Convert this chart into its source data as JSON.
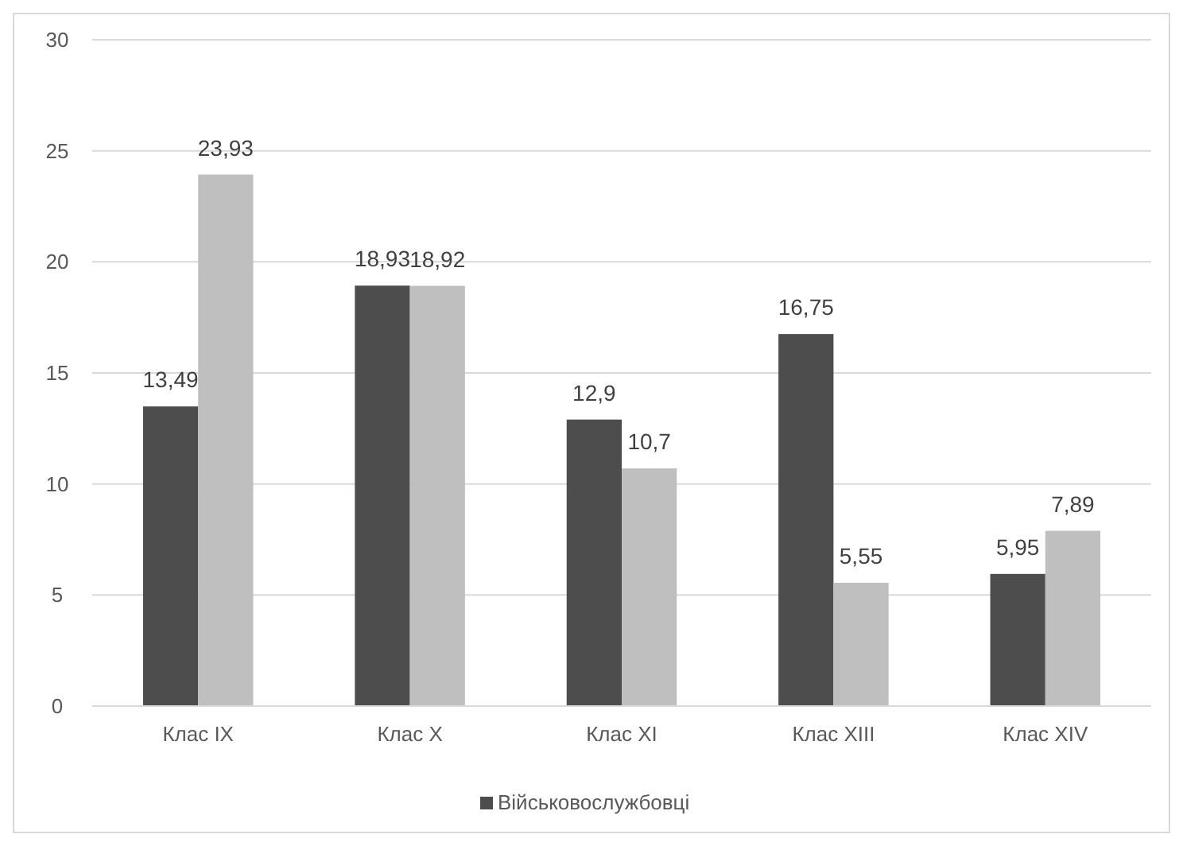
{
  "chart_data": {
    "type": "bar",
    "categories": [
      "Клас IX",
      "Клас X",
      "Клас XI",
      "Клас XIII",
      "Клас XIV"
    ],
    "series": [
      {
        "name": "Військовослужбовці",
        "color": "#4d4d4d",
        "values": [
          13.49,
          18.93,
          12.9,
          16.75,
          5.95
        ],
        "value_labels": [
          "13,49",
          "18,93",
          "12,9",
          "16,75",
          "5,95"
        ]
      },
      {
        "color": "#bfbfbf",
        "values": [
          23.93,
          18.92,
          10.7,
          5.55,
          7.89
        ],
        "value_labels": [
          "23,93",
          "18,92",
          "10,7",
          "5,55",
          "7,89"
        ]
      }
    ],
    "ylim": [
      0,
      30
    ],
    "yticks": [
      0,
      5,
      10,
      15,
      20,
      25,
      30
    ],
    "grid": "y",
    "legend": "bottom"
  }
}
